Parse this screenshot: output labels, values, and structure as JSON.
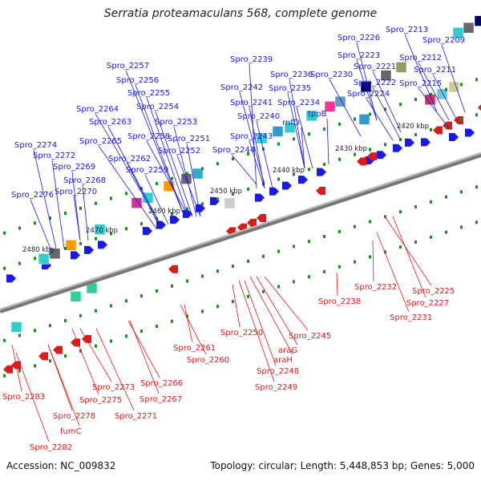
{
  "title": "Serratia proteamaculans 568, complete genome",
  "accession": "Accession: NC_009832",
  "footer": "Topology: circular; Length: 5,448,853 bp; Genes: 5,000",
  "colors": {
    "forward": "#1a1ae0",
    "reverse": "#e01a1a",
    "backbone": "#888888",
    "tick": "#1e8c1e"
  },
  "kbp_labels": [
    "2420 kbp",
    "2430 kbp",
    "2440 kbp",
    "2450 kbp",
    "2460 kbp",
    "2470 kbp",
    "2480 kbp"
  ],
  "top_genes": [
    "Spro_2213",
    "Spro_2209",
    "Spro_2226",
    "Spro_2212",
    "Spro_2223",
    "Spro_2211",
    "Spro_2221",
    "Spro_2239",
    "Spro_2230",
    "Spro_2222",
    "Spro_2215",
    "Spro_2236",
    "Spro_2257",
    "Spro_2242",
    "Spro_2235",
    "Spro_2224",
    "Spro_2256",
    "Spro_2234",
    "Spro_2241",
    "Spro_2255",
    "tppB",
    "Spro_2240",
    "Spro_2264",
    "Spro_2254",
    "rnfD",
    "Spro_2263",
    "Spro_2253",
    "Spro_2243",
    "Spro_2258",
    "Spro_2251",
    "Spro_2265",
    "Spro_2274",
    "Spro_2244",
    "Spro_2252",
    "Spro_2262",
    "Spro_2272",
    "Spro_2269",
    "Spro_2259",
    "Spro_2268",
    "Spro_2276",
    "Spro_2270"
  ],
  "bottom_genes": [
    "Spro_2232",
    "Spro_2225",
    "Spro_2238",
    "Spro_2227",
    "Spro_2231",
    "Spro_2250",
    "Spro_2245",
    "Spro_2261",
    "araG",
    "Spro_2260",
    "araH",
    "Spro_2248",
    "Spro_2266",
    "Spro_2273",
    "Spro_2249",
    "Spro_2275",
    "Spro_2267",
    "Spro_2283",
    "Spro_2271",
    "Spro_2278",
    "fumC",
    "Spro_2282"
  ]
}
